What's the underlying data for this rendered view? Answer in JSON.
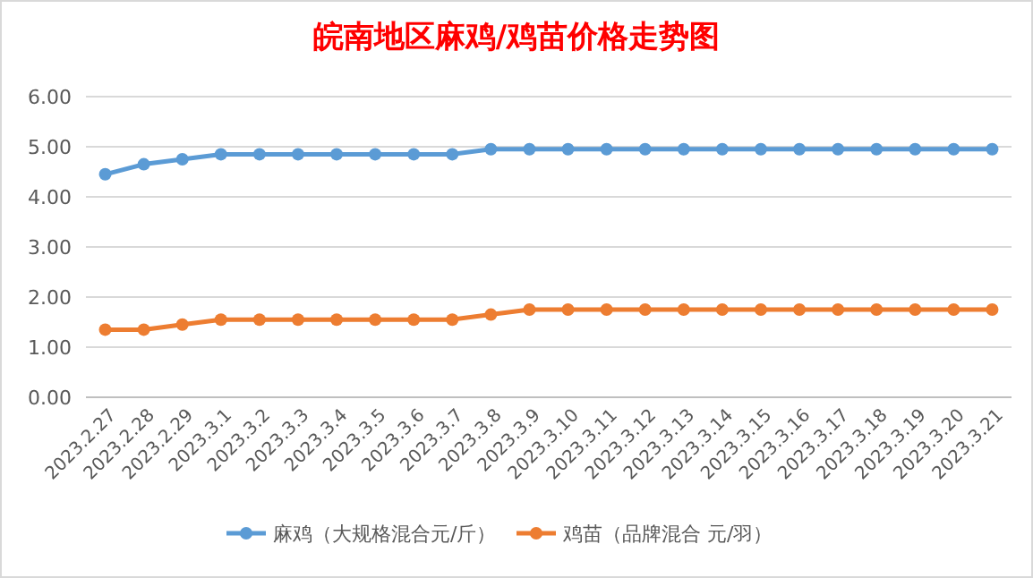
{
  "chart_data": {
    "type": "line",
    "title": "皖南地区麻鸡/鸡苗价格走势图",
    "categories": [
      "2023.2.27",
      "2023.2.28",
      "2023.2.29",
      "2023.3.1",
      "2023.3.2",
      "2023.3.3",
      "2023.3.4",
      "2023.3.5",
      "2023.3.6",
      "2023.3.7",
      "2023.3.8",
      "2023.3.9",
      "2023.3.10",
      "2023.3.11",
      "2023.3.12",
      "2023.3.13",
      "2023.3.14",
      "2023.3.15",
      "2023.3.16",
      "2023.3.17",
      "2023.3.18",
      "2023.3.19",
      "2023.3.20",
      "2023.3.21"
    ],
    "series": [
      {
        "name": "麻鸡（大规格混合元/斤）",
        "color": "#5b9bd5",
        "values": [
          4.45,
          4.65,
          4.75,
          4.85,
          4.85,
          4.85,
          4.85,
          4.85,
          4.85,
          4.85,
          4.95,
          4.95,
          4.95,
          4.95,
          4.95,
          4.95,
          4.95,
          4.95,
          4.95,
          4.95,
          4.95,
          4.95,
          4.95,
          4.95
        ]
      },
      {
        "name": "鸡苗（品牌混合 元/羽）",
        "color": "#ed7d31",
        "values": [
          1.35,
          1.35,
          1.45,
          1.55,
          1.55,
          1.55,
          1.55,
          1.55,
          1.55,
          1.55,
          1.65,
          1.75,
          1.75,
          1.75,
          1.75,
          1.75,
          1.75,
          1.75,
          1.75,
          1.75,
          1.75,
          1.75,
          1.75,
          1.75
        ]
      }
    ],
    "ylim": [
      0,
      6
    ],
    "yticks": [
      {
        "value": 0,
        "label": "0.00"
      },
      {
        "value": 1,
        "label": "1.00"
      },
      {
        "value": 2,
        "label": "2.00"
      },
      {
        "value": 3,
        "label": "3.00"
      },
      {
        "value": 4,
        "label": "4.00"
      },
      {
        "value": 5,
        "label": "5.00"
      },
      {
        "value": 6,
        "label": "6.00"
      }
    ],
    "grid": "y",
    "legend": "bottom",
    "marker": "circle",
    "line_style": "solid"
  }
}
